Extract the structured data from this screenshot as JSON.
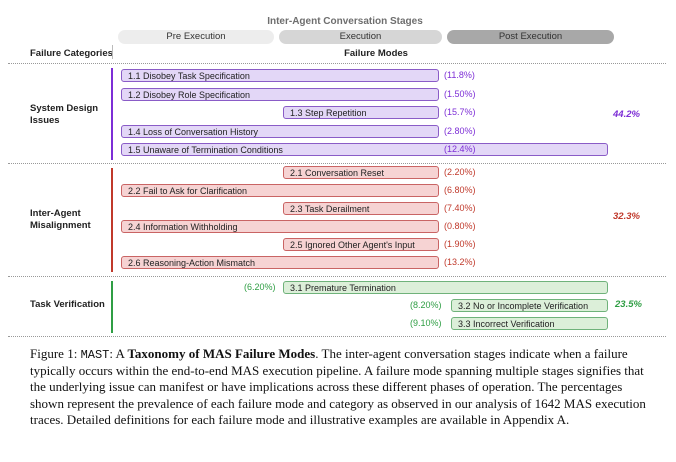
{
  "stages": {
    "title": "Inter-Agent Conversation Stages",
    "pre": "Pre Execution",
    "exec": "Execution",
    "post": "Post Execution"
  },
  "headers": {
    "categories": "Failure Categories",
    "modes": "Failure Modes"
  },
  "colors": {
    "system": "#7d2ed6",
    "inter": "#c0392b",
    "task": "#2f9e44"
  },
  "categories": [
    {
      "name": "System Design Issues",
      "line1": "System Design",
      "line2": "Issues",
      "pct": "44.2%",
      "modes": [
        {
          "label": "1.1 Disobey Task Specification",
          "pct": "(11.8%)"
        },
        {
          "label": "1.2 Disobey Role Specification",
          "pct": "(1.50%)"
        },
        {
          "label": "1.3 Step Repetition",
          "pct": "(15.7%)"
        },
        {
          "label": "1.4 Loss of Conversation History",
          "pct": "(2.80%)"
        },
        {
          "label": "1.5 Unaware of Termination Conditions",
          "pct": "(12.4%)"
        }
      ]
    },
    {
      "name": "Inter-Agent Misalignment",
      "line1": "Inter-Agent",
      "line2": "Misalignment",
      "pct": "32.3%",
      "modes": [
        {
          "label": "2.1 Conversation Reset",
          "pct": "(2.20%)"
        },
        {
          "label": "2.2 Fail to Ask for Clarification",
          "pct": "(6.80%)"
        },
        {
          "label": "2.3 Task Derailment",
          "pct": "(7.40%)"
        },
        {
          "label": "2.4 Information Withholding",
          "pct": "(0.80%)"
        },
        {
          "label": "2.5 Ignored Other Agent's Input",
          "pct": "(1.90%)"
        },
        {
          "label": "2.6 Reasoning-Action Mismatch",
          "pct": "(13.2%)"
        }
      ]
    },
    {
      "name": "Task Verification",
      "line1": "Task Verification",
      "pct": "23.5%",
      "modes": [
        {
          "label": "3.1  Premature Termination",
          "pct": "(6.20%)"
        },
        {
          "label": "3.2 No or Incomplete Verification",
          "pct": "(8.20%)"
        },
        {
          "label": "3.3 Incorrect Verification",
          "pct": "(9.10%)"
        }
      ]
    }
  ],
  "caption": {
    "prefix": "Figure 1: ",
    "name": "MAST",
    "colon": ": A ",
    "bold": "Taxonomy of MAS Failure Modes",
    "rest": ". The inter-agent conversation stages indicate when a failure typically occurs within the end-to-end MAS execution pipeline.  A failure mode spanning multiple stages signifies that the underlying issue can manifest or have implications across these different phases of operation. The percentages shown represent the prevalence of each failure mode and category as observed in our analysis of 1642 MAS execution traces. Detailed definitions for each failure mode and illustrative examples are available in Appendix A."
  }
}
